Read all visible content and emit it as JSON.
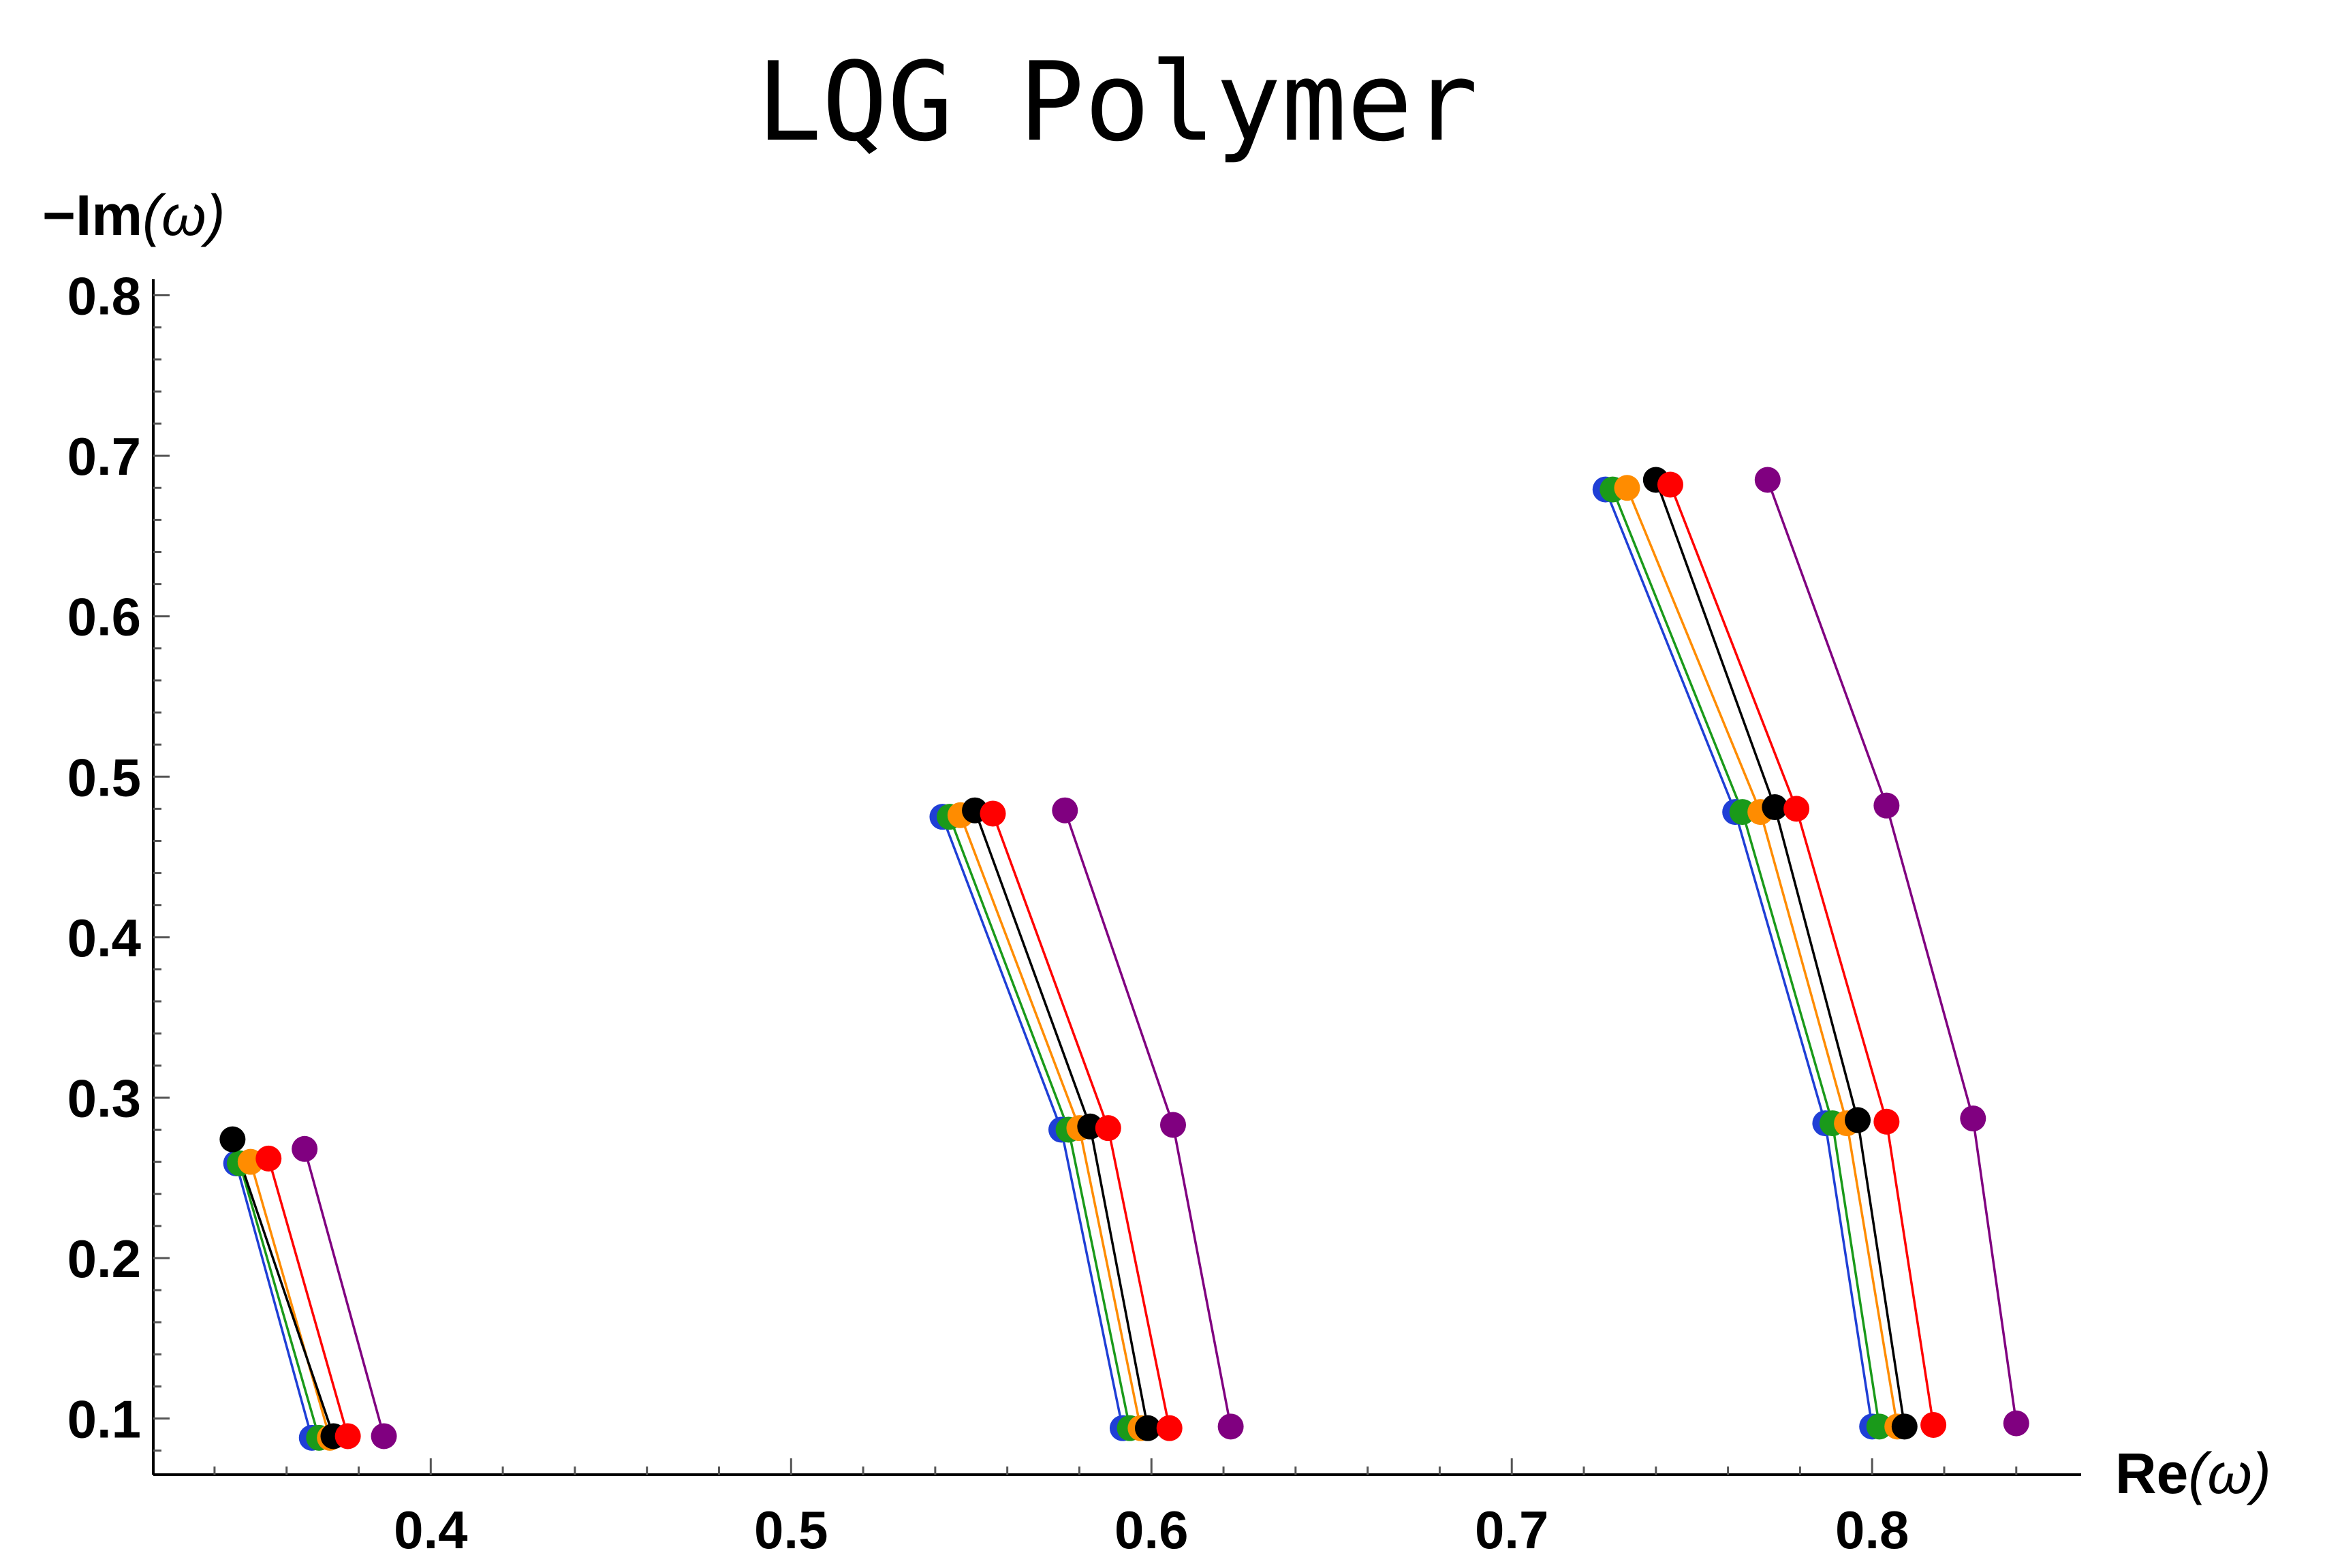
{
  "chart_data": {
    "type": "line",
    "title": "LQG Polymer",
    "xlabel": {
      "bold": "Re",
      "rest": "(ω)"
    },
    "ylabel": {
      "bold": "−Im",
      "rest": "(ω)"
    },
    "xlim": [
      0.323,
      0.858
    ],
    "ylim": [
      0.065,
      0.81
    ],
    "xticks": [
      0.4,
      0.5,
      0.6,
      0.7,
      0.8
    ],
    "xtick_labels": [
      "0.4",
      "0.5",
      "0.6",
      "0.7",
      "0.8"
    ],
    "yticks": [
      0.1,
      0.2,
      0.3,
      0.4,
      0.5,
      0.6,
      0.7,
      0.8
    ],
    "ytick_labels": [
      "0.1",
      "0.2",
      "0.3",
      "0.4",
      "0.5",
      "0.6",
      "0.7",
      "0.8"
    ],
    "grid": false,
    "legend": "none",
    "series": [
      {
        "color": "#1f3fd6",
        "segments": [
          [
            [
              0.346,
              0.259
            ],
            [
              0.367,
              0.088
            ]
          ],
          [
            [
              0.542,
              0.475
            ],
            [
              0.575,
              0.28
            ],
            [
              0.592,
              0.094
            ]
          ],
          [
            [
              0.726,
              0.679
            ],
            [
              0.762,
              0.478
            ],
            [
              0.787,
              0.284
            ],
            [
              0.8,
              0.095
            ]
          ]
        ]
      },
      {
        "color": "#1a9a1a",
        "segments": [
          [
            [
              0.347,
              0.259
            ],
            [
              0.369,
              0.088
            ]
          ],
          [
            [
              0.544,
              0.475
            ],
            [
              0.577,
              0.28
            ],
            [
              0.594,
              0.094
            ]
          ],
          [
            [
              0.728,
              0.679
            ],
            [
              0.764,
              0.478
            ],
            [
              0.789,
              0.284
            ],
            [
              0.802,
              0.095
            ]
          ]
        ]
      },
      {
        "color": "#ff8c00",
        "segments": [
          [
            [
              0.35,
              0.26
            ],
            [
              0.372,
              0.088
            ]
          ],
          [
            [
              0.547,
              0.476
            ],
            [
              0.58,
              0.281
            ],
            [
              0.597,
              0.094
            ]
          ],
          [
            [
              0.732,
              0.68
            ],
            [
              0.769,
              0.478
            ],
            [
              0.793,
              0.284
            ],
            [
              0.807,
              0.095
            ]
          ]
        ]
      },
      {
        "color": "#000000",
        "segments": [
          [
            [
              0.345,
              0.274
            ],
            [
              0.373,
              0.089
            ]
          ],
          [
            [
              0.551,
              0.479
            ],
            [
              0.583,
              0.282
            ],
            [
              0.599,
              0.094
            ]
          ],
          [
            [
              0.74,
              0.685
            ],
            [
              0.773,
              0.481
            ],
            [
              0.796,
              0.286
            ],
            [
              0.809,
              0.095
            ]
          ]
        ]
      },
      {
        "color": "#ff0000",
        "segments": [
          [
            [
              0.355,
              0.262
            ],
            [
              0.377,
              0.089
            ]
          ],
          [
            [
              0.556,
              0.477
            ],
            [
              0.588,
              0.281
            ],
            [
              0.605,
              0.094
            ]
          ],
          [
            [
              0.744,
              0.682
            ],
            [
              0.779,
              0.48
            ],
            [
              0.804,
              0.285
            ],
            [
              0.817,
              0.096
            ]
          ]
        ]
      },
      {
        "color": "#800080",
        "segments": [
          [
            [
              0.365,
              0.268
            ],
            [
              0.387,
              0.089
            ]
          ],
          [
            [
              0.576,
              0.479
            ],
            [
              0.606,
              0.283
            ],
            [
              0.622,
              0.095
            ]
          ],
          [
            [
              0.771,
              0.685
            ],
            [
              0.804,
              0.482
            ],
            [
              0.828,
              0.287
            ],
            [
              0.84,
              0.097
            ]
          ]
        ]
      }
    ]
  }
}
